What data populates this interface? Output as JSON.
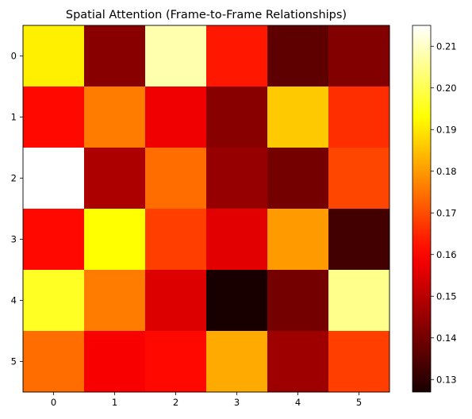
{
  "chart_data": {
    "type": "heatmap",
    "title": "Spatial Attention (Frame-to-Frame Relationships)",
    "xlabel": "",
    "ylabel": "",
    "x_ticks": [
      "0",
      "1",
      "2",
      "3",
      "4",
      "5"
    ],
    "y_ticks": [
      "0",
      "1",
      "2",
      "3",
      "4",
      "5"
    ],
    "values": [
      [
        0.191,
        0.143,
        0.208,
        0.163,
        0.137,
        0.142
      ],
      [
        0.161,
        0.176,
        0.158,
        0.143,
        0.186,
        0.166
      ],
      [
        0.215,
        0.148,
        0.174,
        0.145,
        0.14,
        0.169
      ],
      [
        0.161,
        0.193,
        0.168,
        0.156,
        0.18,
        0.133
      ],
      [
        0.196,
        0.176,
        0.155,
        0.127,
        0.14,
        0.205
      ],
      [
        0.174,
        0.159,
        0.161,
        0.182,
        0.146,
        0.168
      ]
    ],
    "colormap": "hot",
    "vmin": 0.127,
    "vmax": 0.215,
    "colorbar_ticks": [
      "0.13",
      "0.14",
      "0.15",
      "0.16",
      "0.17",
      "0.18",
      "0.19",
      "0.20",
      "0.21"
    ],
    "colorbar_tick_values": [
      0.13,
      0.14,
      0.15,
      0.16,
      0.17,
      0.18,
      0.19,
      0.2,
      0.21
    ]
  }
}
